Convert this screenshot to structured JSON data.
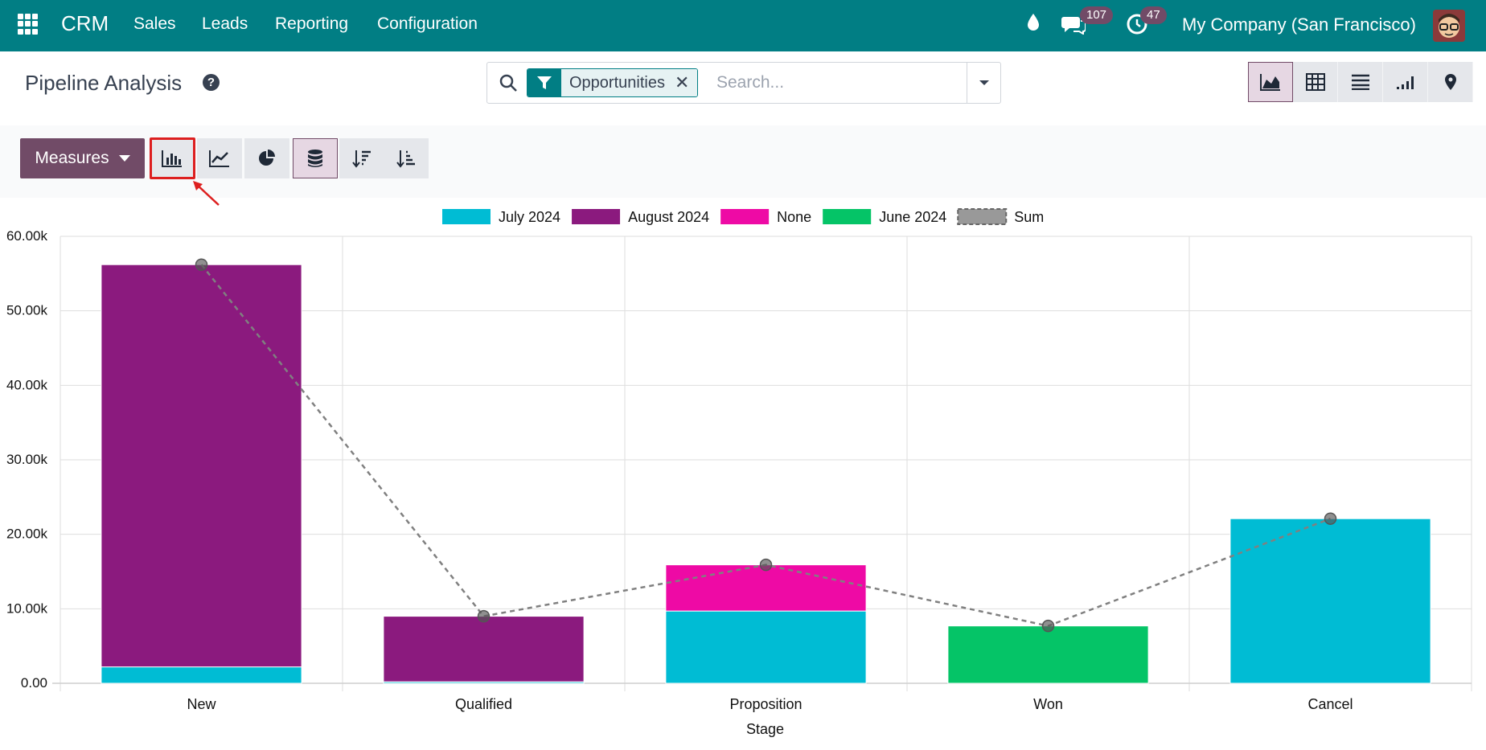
{
  "navbar": {
    "app_name": "CRM",
    "menu": [
      "Sales",
      "Leads",
      "Reporting",
      "Configuration"
    ],
    "messages_count": "107",
    "activities_count": "47",
    "company": "My Company (San Francisco)",
    "icons": [
      "apps-grid-icon",
      "drop-icon",
      "chat-icon",
      "clock-icon",
      "avatar"
    ]
  },
  "control_panel": {
    "title": "Pipeline Analysis",
    "help_icon": "?",
    "facet_label": "Opportunities",
    "search_placeholder": "Search...",
    "views": [
      "graph",
      "pivot",
      "list",
      "cohort",
      "map"
    ],
    "active_view": "graph"
  },
  "toolbar": {
    "measures_label": "Measures",
    "buttons": [
      "bar-chart",
      "line-chart",
      "pie-chart",
      "stacked",
      "sort-descending",
      "sort-ascending"
    ],
    "active": [
      "bar-chart",
      "stacked"
    ]
  },
  "colors": {
    "navbar": "#017e84",
    "primary": "#714b67",
    "series_july": "#00bcd4",
    "series_august": "#8b1a7e",
    "series_none": "#ee0aa5",
    "series_june": "#05c467",
    "sum_line": "#888888"
  },
  "chart_data": {
    "type": "bar",
    "stacked": true,
    "categories": [
      "New",
      "Qualified",
      "Proposition",
      "Won",
      "Cancel"
    ],
    "xlabel": "Stage",
    "ylabel": "",
    "ylim": [
      0,
      60000
    ],
    "yticks": [
      "0.00",
      "10.00k",
      "20.00k",
      "30.00k",
      "40.00k",
      "50.00k",
      "60.00k"
    ],
    "legend_position": "top",
    "grid": true,
    "series": [
      {
        "name": "July 2024",
        "color": "#00bcd4",
        "values": [
          2200,
          200,
          9700,
          0,
          22100
        ]
      },
      {
        "name": "August 2024",
        "color": "#8b1a7e",
        "values": [
          54000,
          8800,
          0,
          0,
          0
        ]
      },
      {
        "name": "None",
        "color": "#ee0aa5",
        "values": [
          0,
          0,
          6200,
          0,
          0
        ]
      },
      {
        "name": "June 2024",
        "color": "#05c467",
        "values": [
          0,
          0,
          0,
          7700,
          0
        ]
      }
    ],
    "sum": {
      "name": "Sum",
      "values": [
        56200,
        9000,
        15900,
        7700,
        22100
      ]
    }
  }
}
